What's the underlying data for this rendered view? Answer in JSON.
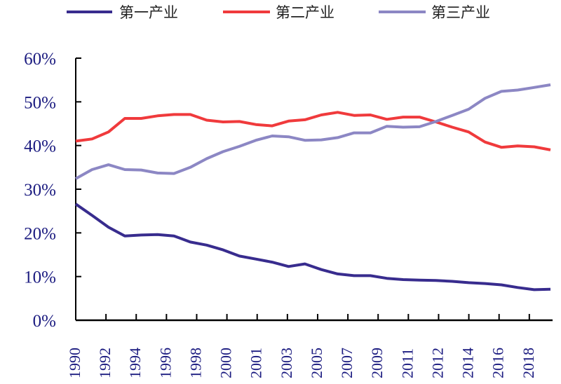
{
  "chart_data": {
    "type": "line",
    "title": "",
    "xlabel": "",
    "ylabel": "",
    "x": [
      1990,
      1991,
      1992,
      1993,
      1994,
      1995,
      1996,
      1997,
      1998,
      1999,
      2000,
      2001,
      2002,
      2003,
      2004,
      2005,
      2006,
      2007,
      2008,
      2009,
      2010,
      2011,
      2012,
      2013,
      2014,
      2015,
      2016,
      2017,
      2018,
      2019
    ],
    "x_tick_labels": [
      "1990",
      "1992",
      "1994",
      "1996",
      "1998",
      "2000",
      "2001",
      "2003",
      "2005",
      "2007",
      "2009",
      "2011",
      "2012",
      "2014",
      "2016",
      "2018"
    ],
    "y_tick_labels": [
      "0%",
      "10%",
      "20%",
      "30%",
      "40%",
      "50%",
      "60%"
    ],
    "ylim": [
      0,
      60
    ],
    "y_unit": "%",
    "grid": false,
    "legend_position": "top",
    "series": [
      {
        "name": "第一产业",
        "color": "#382c8e",
        "values": [
          26.6,
          24.0,
          21.3,
          19.3,
          19.5,
          19.6,
          19.3,
          17.9,
          17.2,
          16.1,
          14.7,
          14.0,
          13.3,
          12.3,
          12.9,
          11.6,
          10.6,
          10.2,
          10.2,
          9.6,
          9.3,
          9.2,
          9.1,
          8.9,
          8.6,
          8.4,
          8.1,
          7.5,
          7.0,
          7.1
        ]
      },
      {
        "name": "第二产业",
        "color": "#f03a3c",
        "values": [
          41.0,
          41.5,
          43.1,
          46.2,
          46.2,
          46.8,
          47.1,
          47.1,
          45.8,
          45.4,
          45.5,
          44.8,
          44.5,
          45.6,
          45.9,
          47.0,
          47.6,
          46.9,
          47.0,
          46.0,
          46.5,
          46.5,
          45.4,
          44.2,
          43.1,
          40.8,
          39.6,
          39.9,
          39.7,
          39.0
        ]
      },
      {
        "name": "第三产业",
        "color": "#8c87c4",
        "values": [
          32.4,
          34.5,
          35.6,
          34.5,
          34.4,
          33.7,
          33.6,
          35.0,
          37.0,
          38.6,
          39.8,
          41.2,
          42.2,
          42.0,
          41.2,
          41.3,
          41.8,
          42.9,
          42.9,
          44.4,
          44.2,
          44.3,
          45.5,
          46.9,
          48.3,
          50.8,
          52.4,
          52.7,
          53.3,
          53.9
        ]
      }
    ]
  }
}
